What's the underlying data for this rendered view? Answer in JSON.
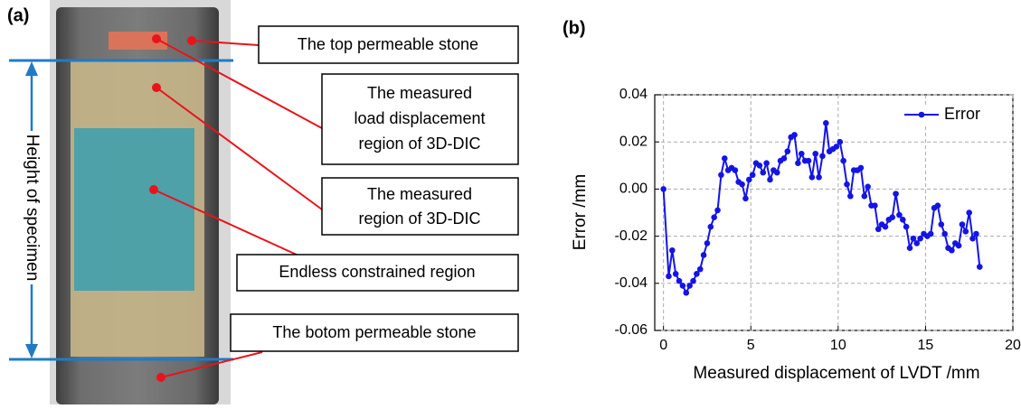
{
  "panels": {
    "a": "(a)",
    "b": "(b)"
  },
  "diagram": {
    "height_label": "Height of specimen",
    "labels": [
      {
        "lines": [
          "The top permeable stone"
        ]
      },
      {
        "lines": [
          "The measured",
          "load displacement",
          "region of 3D-DIC"
        ]
      },
      {
        "lines": [
          "The measured",
          "region of 3D-DIC"
        ]
      },
      {
        "lines": [
          "Endless constrained region"
        ]
      },
      {
        "lines": [
          "The botom permeable stone"
        ]
      }
    ]
  },
  "chart_data": {
    "type": "line",
    "xlabel": "Measured displacement of LVDT /mm",
    "ylabel": "Error /mm",
    "x": [
      0,
      0.3,
      0.5,
      0.7,
      0.9,
      1.1,
      1.3,
      1.5,
      1.7,
      1.9,
      2.1,
      2.3,
      2.5,
      2.7,
      2.9,
      3.1,
      3.3,
      3.5,
      3.7,
      3.9,
      4.1,
      4.3,
      4.5,
      4.7,
      4.9,
      5.1,
      5.3,
      5.5,
      5.7,
      5.9,
      6.1,
      6.3,
      6.5,
      6.7,
      6.9,
      7.1,
      7.3,
      7.5,
      7.7,
      7.9,
      8.1,
      8.3,
      8.5,
      8.7,
      8.9,
      9.1,
      9.3,
      9.5,
      9.7,
      9.9,
      10.1,
      10.3,
      10.5,
      10.7,
      10.9,
      11.1,
      11.3,
      11.5,
      11.7,
      11.9,
      12.1,
      12.3,
      12.5,
      12.7,
      12.9,
      13.1,
      13.3,
      13.5,
      13.7,
      13.9,
      14.1,
      14.3,
      14.5,
      14.7,
      14.9,
      15.1,
      15.3,
      15.5,
      15.7,
      15.9,
      16.1,
      16.3,
      16.5,
      16.7,
      16.9,
      17.1,
      17.3,
      17.5,
      17.7,
      17.9,
      18.1
    ],
    "series": [
      {
        "name": "Error",
        "color": "#1414e6",
        "values": [
          0,
          -0.037,
          -0.026,
          -0.036,
          -0.039,
          -0.041,
          -0.044,
          -0.041,
          -0.039,
          -0.036,
          -0.034,
          -0.028,
          -0.023,
          -0.016,
          -0.012,
          -0.009,
          0.006,
          0.013,
          0.008,
          0.009,
          0.008,
          0.003,
          0.002,
          -0.004,
          0.004,
          0.006,
          0.011,
          0.01,
          0.007,
          0.011,
          0.004,
          0.008,
          0.007,
          0.012,
          0.013,
          0.016,
          0.022,
          0.023,
          0.011,
          0.015,
          0.012,
          0.012,
          0.005,
          0.015,
          0.005,
          0.014,
          0.028,
          0.016,
          0.017,
          0.018,
          0.02,
          0.012,
          0.002,
          -0.003,
          0.008,
          0.008,
          0.009,
          -0.003,
          0.001,
          -0.007,
          -0.007,
          -0.017,
          -0.015,
          -0.016,
          -0.013,
          -0.012,
          -0.002,
          -0.011,
          -0.013,
          -0.016,
          -0.025,
          -0.021,
          -0.023,
          -0.021,
          -0.019,
          -0.02,
          -0.019,
          -0.008,
          -0.007,
          -0.015,
          -0.019,
          -0.025,
          -0.026,
          -0.023,
          -0.024,
          -0.015,
          -0.018,
          -0.01,
          -0.021,
          -0.019,
          -0.033
        ]
      }
    ],
    "xlim": [
      -0.5,
      20
    ],
    "xticks": [
      0,
      5,
      10,
      15,
      20
    ],
    "ylim": [
      -0.06,
      0.04
    ],
    "yticks": [
      -0.06,
      -0.04,
      -0.02,
      {
        "value": 0,
        "label": "0.00"
      },
      0.02,
      0.04
    ],
    "grid": true,
    "legend": "upper right"
  }
}
